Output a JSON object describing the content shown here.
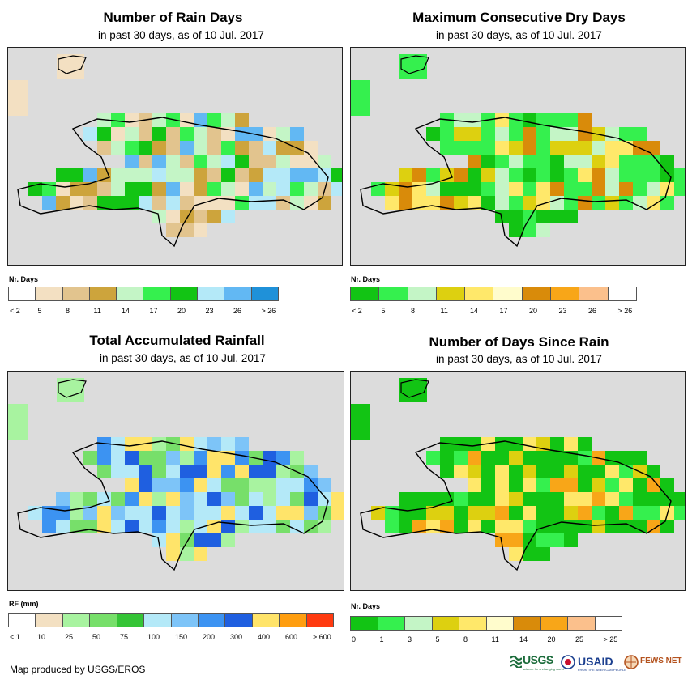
{
  "panels": [
    {
      "title": "Number of Rain Days",
      "subtitle": "in past 30 days, as of 10 Jul. 2017",
      "legend_title": "Nr. Days",
      "legend_colors": [
        "#ffffff",
        "#f3e0c2",
        "#e2c48e",
        "#cda43c",
        "#c4f5c6",
        "#35f04e",
        "#12c414",
        "#b4e9f8",
        "#62b8f3",
        "#1f91d9"
      ],
      "legend_ticks": [
        "< 2",
        "5",
        "8",
        "11",
        "14",
        "17",
        "20",
        "23",
        "26",
        "> 26"
      ],
      "grid_colors": [
        "#f3e0c2",
        "#e2c48e",
        "#cda43c",
        "#c4f5c6",
        "#35f04e",
        "#12c414",
        "#b4e9f8",
        "#62b8f3"
      ]
    },
    {
      "title": "Maximum Consecutive Dry Days",
      "subtitle": "in past 30 days, as of 10 Jul. 2017",
      "legend_title": "Nr. Days",
      "legend_colors": [
        "#12c414",
        "#35f04e",
        "#c4f5c6",
        "#ddd010",
        "#ffe86a",
        "#fffccc",
        "#d98b0a",
        "#f8a618",
        "#fbc08c",
        "#ffffff"
      ],
      "legend_ticks": [
        "< 2",
        "5",
        "8",
        "11",
        "14",
        "17",
        "20",
        "23",
        "26",
        "> 26"
      ],
      "grid_colors": [
        "#35f04e",
        "#35f04e",
        "#35f04e",
        "#c4f5c6",
        "#ddd010",
        "#ffe86a",
        "#d98b0a",
        "#12c414"
      ]
    },
    {
      "title": "Total Accumulated Rainfall",
      "subtitle": "in past 30 days, as of 10 Jul. 2017",
      "legend_title": "RF (mm)",
      "legend_colors": [
        "#ffffff",
        "#f3e0c2",
        "#a8f3a0",
        "#77df6a",
        "#35c436",
        "#b4e9f8",
        "#7dc4f8",
        "#3c93f2",
        "#1f5fe0",
        "#ffe46a",
        "#ff9e10",
        "#ff3a10"
      ],
      "legend_ticks": [
        "< 1",
        "10",
        "25",
        "50",
        "75",
        "100",
        "150",
        "200",
        "300",
        "400",
        "600",
        "> 600"
      ],
      "grid_colors": [
        "#a8f3a0",
        "#77df6a",
        "#b4e9f8",
        "#7dc4f8",
        "#3c93f2",
        "#1f5fe0",
        "#ffe46a",
        "#b4e9f8"
      ]
    },
    {
      "title": "Number of Days Since Rain",
      "subtitle": "in past 30 days, as of 10 Jul. 2017",
      "legend_title": "Nr. Days",
      "legend_colors": [
        "#12c414",
        "#35f04e",
        "#c4f5c6",
        "#ddd010",
        "#ffe86a",
        "#fffccc",
        "#d98b0a",
        "#f8a618",
        "#fbc08c",
        "#ffffff"
      ],
      "legend_ticks": [
        "0",
        "1",
        "3",
        "5",
        "8",
        "11",
        "14",
        "20",
        "25",
        "> 25"
      ],
      "grid_colors": [
        "#12c414",
        "#12c414",
        "#12c414",
        "#35f04e",
        "#ddd010",
        "#ffe86a",
        "#f8a618",
        "#12c414"
      ]
    }
  ],
  "credit": "Map produced by USGS/EROS",
  "logos": {
    "usgs": "USGS",
    "usgs_tagline": "science for a changing world",
    "usaid": "USAID",
    "usaid_tagline": "FROM THE AMERICAN PEOPLE",
    "fewsnet": "FEWS NET"
  },
  "colors": {
    "map_background": "#dcdcdc",
    "outline": "#000000"
  }
}
